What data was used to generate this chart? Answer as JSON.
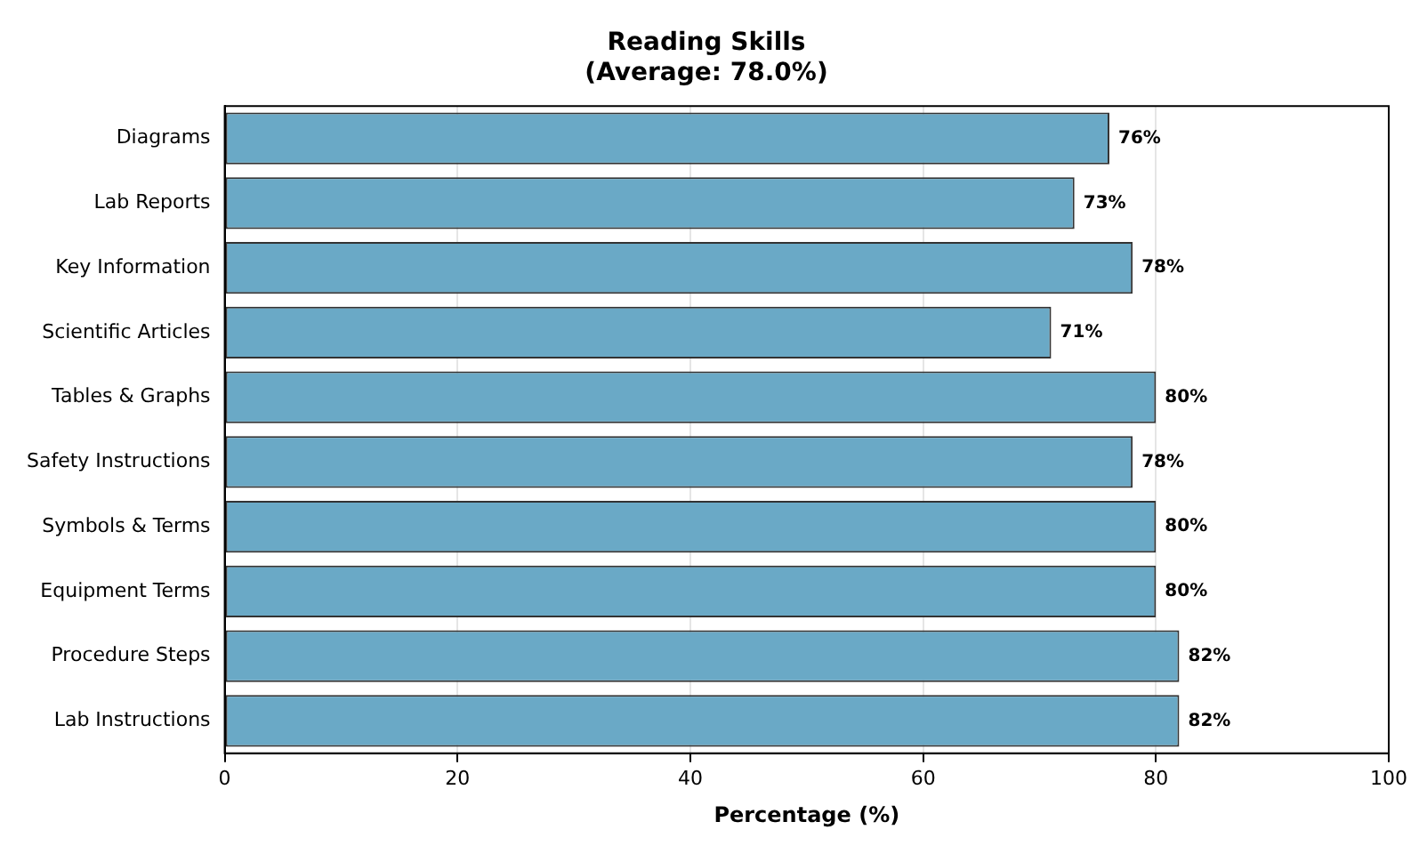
{
  "chart_data": {
    "type": "bar",
    "orientation": "horizontal",
    "title": "Reading Skills",
    "subtitle": "(Average: 78.0%)",
    "xlabel": "Percentage (%)",
    "categories": [
      "Diagrams",
      "Lab Reports",
      "Key Information",
      "Scientific Articles",
      "Tables & Graphs",
      "Safety Instructions",
      "Symbols & Terms",
      "Equipment Terms",
      "Procedure Steps",
      "Lab Instructions"
    ],
    "values": [
      76,
      73,
      78,
      71,
      80,
      78,
      80,
      80,
      82,
      82
    ],
    "value_labels": [
      "76%",
      "73%",
      "78%",
      "71%",
      "80%",
      "78%",
      "80%",
      "80%",
      "82%",
      "82%"
    ],
    "color": "#6aa9c6",
    "xlim": [
      0,
      100
    ],
    "xticks": [
      0,
      20,
      40,
      60,
      80,
      100
    ],
    "grid": "x"
  }
}
